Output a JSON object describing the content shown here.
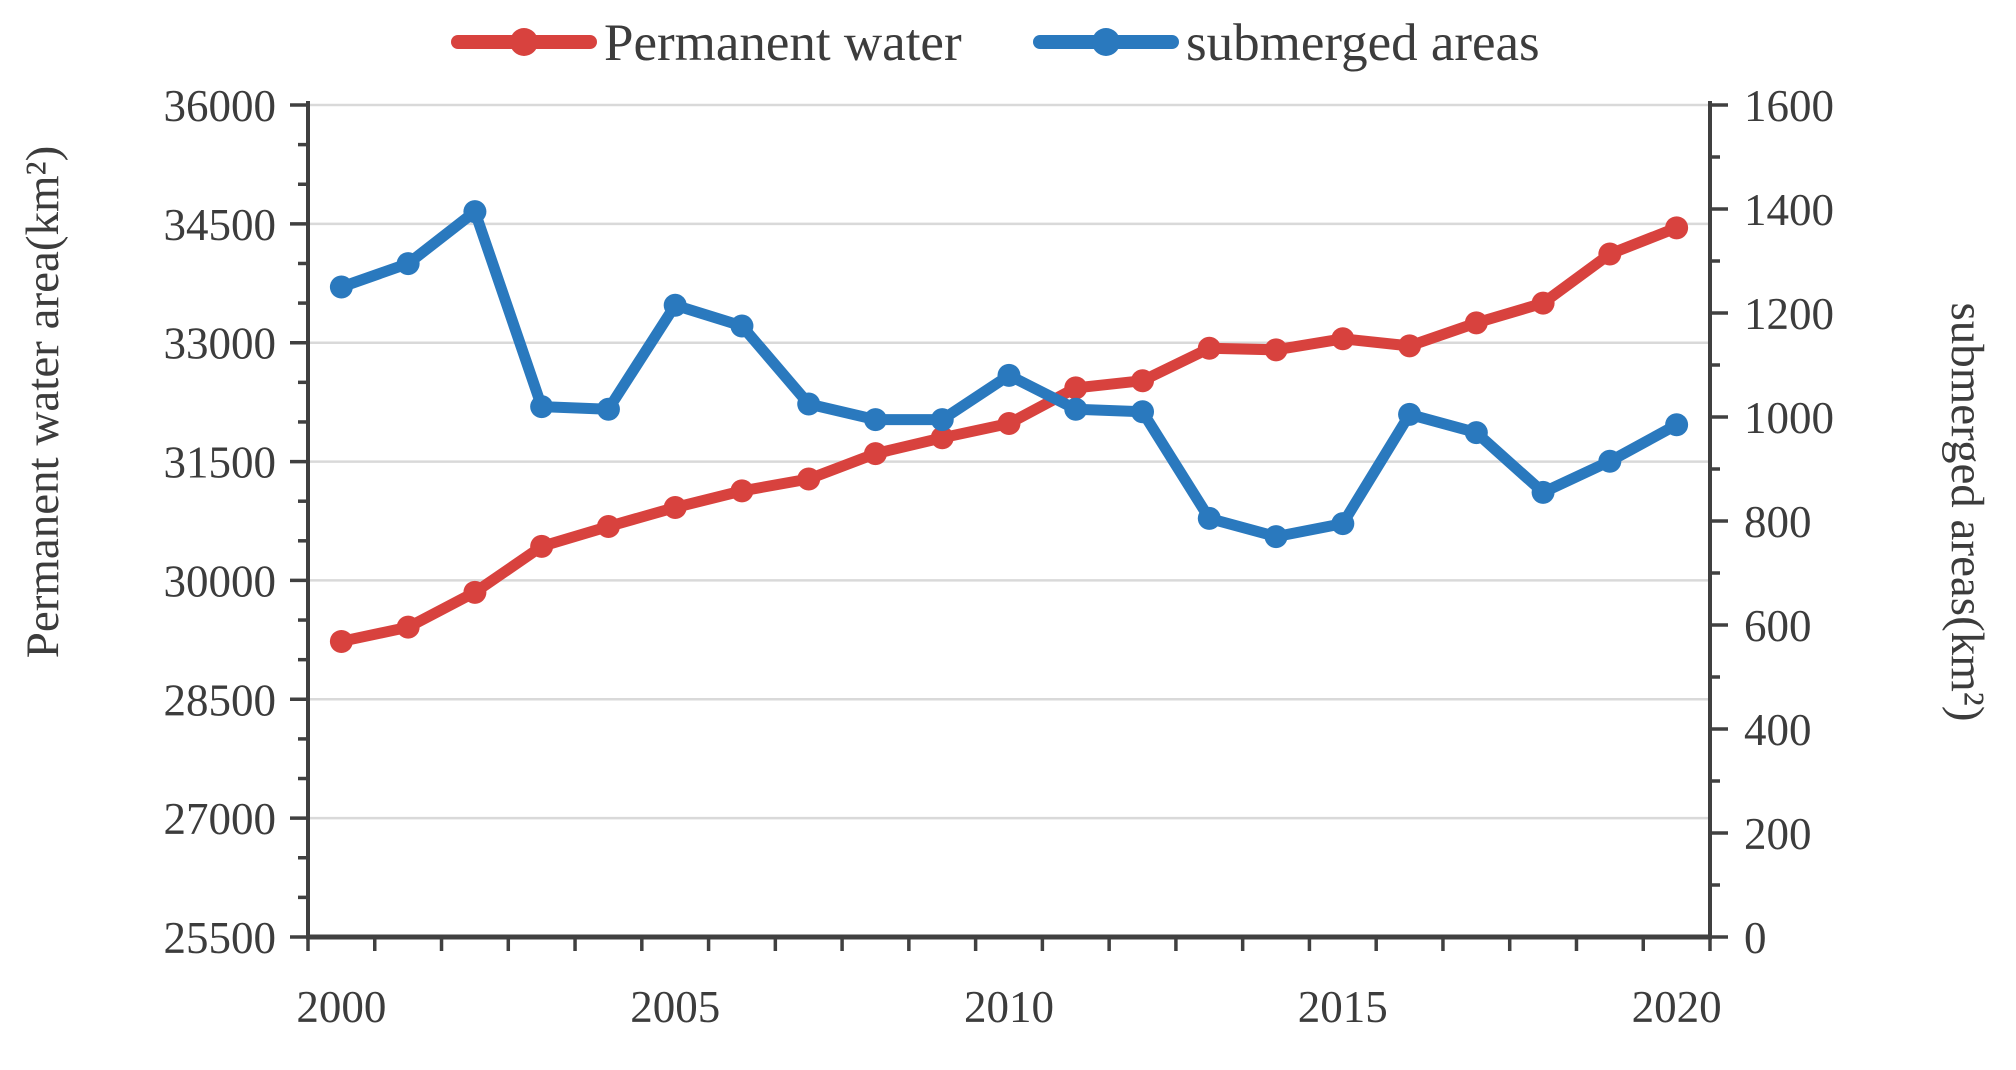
{
  "chart": {
    "legend": {
      "items": [
        {
          "label": "Permanent water",
          "color": "#d8423e"
        },
        {
          "label": "submerged areas",
          "color": "#2a79be"
        }
      ]
    },
    "colors": {
      "red_series": "#d8423e",
      "blue_series": "#2a79be",
      "grid": "#d9d9d9",
      "axis": "#404040",
      "text": "#3c3c3c"
    }
  },
  "chart_data": {
    "type": "line",
    "title": "",
    "x": [
      2000,
      2001,
      2002,
      2003,
      2004,
      2005,
      2006,
      2007,
      2008,
      2009,
      2010,
      2011,
      2012,
      2013,
      2014,
      2015,
      2016,
      2017,
      2018,
      2019,
      2020
    ],
    "series": [
      {
        "name": "Permanent water",
        "axis": "left",
        "color": "#d8423e",
        "values": [
          29230,
          29410,
          29850,
          30430,
          30680,
          30920,
          31130,
          31280,
          31600,
          31800,
          31980,
          32430,
          32520,
          32930,
          32910,
          33050,
          32960,
          33250,
          33500,
          34120,
          34450
        ]
      },
      {
        "name": "submerged areas",
        "axis": "right",
        "color": "#2a79be",
        "values": [
          1250,
          1295,
          1395,
          1020,
          1015,
          1215,
          1175,
          1025,
          995,
          995,
          1080,
          1015,
          1010,
          805,
          770,
          795,
          1005,
          970,
          855,
          915,
          985
        ]
      }
    ],
    "left_axis": {
      "label": "Permanent water area(km²)",
      "min": 25500,
      "max": 36000,
      "major": 1500,
      "minor": 500,
      "tick_labels": [
        "36000",
        "34500",
        "33000",
        "31500",
        "30000",
        "28500",
        "27000",
        "25500"
      ]
    },
    "right_axis": {
      "label": "submerged areas(km²)",
      "min": 0,
      "max": 1600,
      "major": 200,
      "minor": 100,
      "tick_labels": [
        "1600",
        "1400",
        "1200",
        "1000",
        "800",
        "600",
        "400",
        "200",
        "0"
      ]
    },
    "x_axis": {
      "tick_labels": [
        "2000",
        "2005",
        "2010",
        "2015",
        "2020"
      ],
      "label_step": 5
    },
    "grid": true,
    "legend_position": "top"
  }
}
